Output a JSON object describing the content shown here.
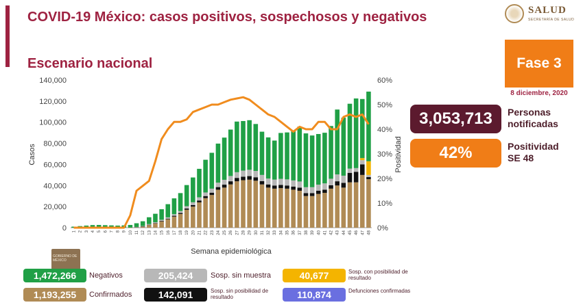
{
  "header": {
    "title": "COVID-19 México: casos positivos, sospechosos y negativos",
    "subtitle": "Escenario nacional"
  },
  "logo": {
    "name": "SALUD",
    "subtitle": "SECRETARÍA DE SALUD"
  },
  "phase": {
    "label": "Fase 3",
    "date": "8 diciembre, 2020"
  },
  "stats": {
    "notified_value": "3,053,713",
    "notified_label": "Personas notificadas",
    "positivity_value": "42%",
    "positivity_label": "Positividad SE 48"
  },
  "legend": {
    "negatives_value": "1,472,266",
    "negatives_label": "Negativos",
    "no_sample_value": "205,424",
    "no_sample_label": "Sosp. sin muestra",
    "possible_value": "40,677",
    "possible_label": "Sosp. con posibilidad de resultado",
    "confirmed_value": "1,193,255",
    "confirmed_label": "Confirmados",
    "no_possible_value": "142,091",
    "no_possible_label": "Sosp. sin posibilidad de resultado",
    "deaths_value": "110,874",
    "deaths_label": "Defunciones confirmadas"
  },
  "colors": {
    "brand": "#9e2241",
    "confirmados": "#b08b55",
    "sin_posibilidad": "#111111",
    "sin_muestra": "#b8b8b8",
    "con_posibilidad": "#f4b400",
    "negativos": "#20a046",
    "positividad": "#f08c1e"
  },
  "chart_data": {
    "type": "bar",
    "xlabel": "Semana epidemiológica",
    "ylabel": "Casos",
    "y2label": "Positividad",
    "ylim": [
      0,
      140000
    ],
    "y2lim": [
      0,
      60
    ],
    "yticks": [
      "0",
      "20,000",
      "40,000",
      "60,000",
      "80,000",
      "100,000",
      "120,000",
      "140,000"
    ],
    "y2ticks": [
      "0%",
      "10%",
      "20%",
      "30%",
      "40%",
      "50%",
      "60%"
    ],
    "categories": [
      "1",
      "2",
      "3",
      "4",
      "5",
      "6",
      "7",
      "8",
      "9",
      "10",
      "11",
      "12",
      "13",
      "14",
      "15",
      "16",
      "17",
      "18",
      "19",
      "20",
      "21",
      "22",
      "23",
      "24",
      "25",
      "26",
      "27",
      "28",
      "29",
      "30",
      "31",
      "32",
      "33",
      "34",
      "35",
      "36",
      "37",
      "38",
      "39",
      "40",
      "41",
      "42",
      "43",
      "44",
      "45",
      "46",
      "47",
      "48"
    ],
    "series": [
      {
        "name": "Confirmados",
        "values": [
          0,
          0,
          0,
          0,
          0,
          0,
          0,
          0,
          0,
          100,
          400,
          1000,
          2500,
          4000,
          6000,
          8000,
          10500,
          13000,
          17000,
          20000,
          24000,
          28000,
          31000,
          36000,
          38000,
          41000,
          44000,
          45000,
          45500,
          44500,
          41000,
          38000,
          37000,
          37500,
          37000,
          36000,
          35000,
          30000,
          30000,
          32000,
          33000,
          37000,
          40000,
          38000,
          43000,
          43000,
          50000,
          46000
        ]
      },
      {
        "name": "Sosp. sin posibilidad de resultado",
        "values": [
          0,
          0,
          0,
          0,
          0,
          0,
          0,
          0,
          0,
          0,
          100,
          200,
          300,
          400,
          500,
          600,
          800,
          1000,
          1200,
          1500,
          1800,
          2000,
          2200,
          2500,
          2800,
          3000,
          3200,
          3300,
          3400,
          3300,
          3200,
          3000,
          3000,
          3000,
          3000,
          3000,
          3000,
          2800,
          2800,
          3000,
          3000,
          3200,
          4000,
          4500,
          9000,
          10000,
          10000,
          2000
        ]
      },
      {
        "name": "Sosp. sin muestra",
        "values": [
          0,
          0,
          0,
          0,
          0,
          0,
          0,
          0,
          0,
          0,
          200,
          400,
          600,
          800,
          1000,
          1200,
          1500,
          1800,
          2200,
          2600,
          3000,
          3400,
          3800,
          4200,
          4600,
          5000,
          5400,
          5800,
          6000,
          6000,
          5800,
          5600,
          5600,
          5800,
          5800,
          5800,
          5800,
          5600,
          5600,
          5800,
          6000,
          6200,
          6500,
          6800,
          4000,
          3500,
          4000,
          2000
        ]
      },
      {
        "name": "Sosp. con posibilidad de resultado",
        "values": [
          0,
          0,
          0,
          0,
          0,
          0,
          0,
          0,
          0,
          0,
          0,
          0,
          0,
          0,
          0,
          0,
          0,
          0,
          0,
          0,
          0,
          0,
          0,
          0,
          0,
          0,
          0,
          0,
          0,
          0,
          0,
          0,
          0,
          0,
          0,
          0,
          0,
          0,
          0,
          0,
          0,
          0,
          0,
          0,
          0,
          0,
          2000,
          13000
        ]
      },
      {
        "name": "Negativos",
        "values": [
          1000,
          1500,
          2000,
          2500,
          2600,
          2400,
          2200,
          2000,
          2200,
          2500,
          3500,
          4500,
          6500,
          8000,
          10000,
          12500,
          15000,
          17000,
          20000,
          23500,
          27000,
          31000,
          34000,
          37000,
          40000,
          44000,
          48000,
          47000,
          47000,
          44500,
          41000,
          39000,
          37000,
          43500,
          44500,
          47000,
          52000,
          51000,
          49000,
          48000,
          48000,
          50000,
          61500,
          55000,
          61500,
          66000,
          56000,
          66000
        ]
      }
    ],
    "line": {
      "name": "Positividad",
      "values": [
        0,
        0,
        0,
        0,
        0,
        0,
        0,
        0,
        0,
        5,
        15,
        17,
        19,
        27,
        36,
        40,
        43,
        43,
        44,
        47,
        48,
        49,
        50,
        50,
        51,
        52,
        52.5,
        53,
        52,
        50,
        48,
        46,
        45,
        43,
        41,
        39,
        41,
        40,
        40,
        43,
        43,
        40,
        40,
        45,
        46,
        45,
        46,
        42
      ]
    }
  }
}
